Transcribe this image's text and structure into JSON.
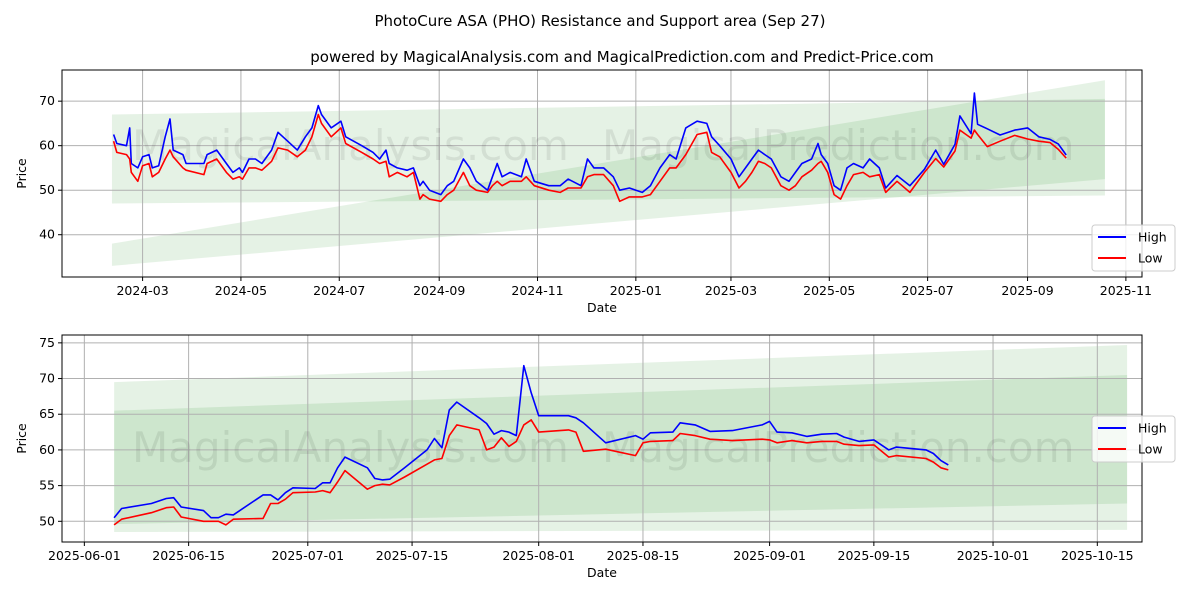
{
  "title": "PhotoCure ASA (PHO) Resistance and Support area (Sep 27)",
  "subtitle": "powered by MagicalAnalysis.com and MagicalPrediction.com and Predict-Price.com",
  "watermarks": [
    "MagicalAnalysis.com",
    "MagicalPrediction.com"
  ],
  "colors": {
    "high": "#0000ff",
    "low": "#ff0000",
    "band": "#008000"
  },
  "chart_data": [
    {
      "type": "line",
      "xlabel": "Date",
      "ylabel": "Price",
      "xlim": [
        "2024-01-11",
        "2025-11-11"
      ],
      "ylim": [
        30.5,
        77
      ],
      "xticks": [
        "2024-03",
        "2024-05",
        "2024-07",
        "2024-09",
        "2024-11",
        "2025-01",
        "2025-03",
        "2025-05",
        "2025-07",
        "2025-09",
        "2025-11"
      ],
      "xtick_dates": [
        "2024-03-01",
        "2024-05-01",
        "2024-07-01",
        "2024-09-01",
        "2024-11-01",
        "2025-01-01",
        "2025-03-01",
        "2025-05-01",
        "2025-07-01",
        "2025-09-01",
        "2025-11-01"
      ],
      "yticks": [
        40,
        50,
        60,
        70
      ],
      "legend": {
        "position": "bottom-right",
        "entries": [
          "High",
          "Low"
        ]
      },
      "bands": [
        {
          "start": "2024-02-11",
          "end": "2025-10-19",
          "top": [
            67,
            70.5
          ],
          "bottom": [
            47,
            48.8
          ]
        },
        {
          "start": "2024-02-11",
          "end": "2025-10-19",
          "top": [
            38,
            74.7
          ],
          "bottom": [
            33,
            52.5
          ]
        }
      ],
      "dates": [
        "2024-02-12",
        "2024-02-14",
        "2024-02-20",
        "2024-02-22",
        "2024-02-23",
        "2024-02-27",
        "2024-03-01",
        "2024-03-05",
        "2024-03-07",
        "2024-03-11",
        "2024-03-15",
        "2024-03-18",
        "2024-03-20",
        "2024-03-26",
        "2024-03-28",
        "2024-04-08",
        "2024-04-10",
        "2024-04-16",
        "2024-04-22",
        "2024-04-26",
        "2024-04-30",
        "2024-05-02",
        "2024-05-06",
        "2024-05-10",
        "2024-05-14",
        "2024-05-20",
        "2024-05-24",
        "2024-05-30",
        "2024-06-05",
        "2024-06-10",
        "2024-06-14",
        "2024-06-18",
        "2024-06-20",
        "2024-06-26",
        "2024-07-02",
        "2024-07-05",
        "2024-07-15",
        "2024-07-22",
        "2024-07-26",
        "2024-07-30",
        "2024-08-01",
        "2024-08-06",
        "2024-08-12",
        "2024-08-16",
        "2024-08-20",
        "2024-08-22",
        "2024-08-26",
        "2024-09-02",
        "2024-09-06",
        "2024-09-10",
        "2024-09-16",
        "2024-09-20",
        "2024-09-24",
        "2024-10-01",
        "2024-10-04",
        "2024-10-07",
        "2024-10-10",
        "2024-10-15",
        "2024-10-22",
        "2024-10-25",
        "2024-10-30",
        "2024-11-08",
        "2024-11-15",
        "2024-11-20",
        "2024-11-28",
        "2024-12-02",
        "2024-12-06",
        "2024-12-12",
        "2024-12-18",
        "2024-12-22",
        "2024-12-28",
        "2025-01-05",
        "2025-01-10",
        "2025-01-16",
        "2025-01-22",
        "2025-01-26",
        "2025-02-01",
        "2025-02-08",
        "2025-02-14",
        "2025-02-17",
        "2025-02-22",
        "2025-03-01",
        "2025-03-06",
        "2025-03-10",
        "2025-03-14",
        "2025-03-18",
        "2025-03-22",
        "2025-03-26",
        "2025-04-01",
        "2025-04-06",
        "2025-04-10",
        "2025-04-14",
        "2025-04-20",
        "2025-04-24",
        "2025-04-26",
        "2025-04-30",
        "2025-05-04",
        "2025-05-08",
        "2025-05-12",
        "2025-05-16",
        "2025-05-22",
        "2025-05-26",
        "2025-06-01",
        "2025-06-05",
        "2025-06-12",
        "2025-06-20",
        "2025-06-29",
        "2025-07-06",
        "2025-07-11",
        "2025-07-18",
        "2025-07-21",
        "2025-07-28",
        "2025-07-30",
        "2025-08-01",
        "2025-08-07",
        "2025-08-15",
        "2025-08-24",
        "2025-09-01",
        "2025-09-08",
        "2025-09-15",
        "2025-09-20",
        "2025-09-25"
      ],
      "high": [
        62.5,
        60.5,
        60,
        64,
        56,
        55,
        57.5,
        58,
        55,
        55.5,
        62,
        66,
        59,
        58,
        56,
        56,
        58,
        59,
        56,
        54,
        55,
        54,
        57,
        57,
        56,
        59,
        63,
        61,
        59,
        62,
        64,
        69,
        67,
        64,
        65.5,
        62,
        60,
        58.5,
        57,
        59,
        56,
        55,
        54.5,
        55,
        51,
        52,
        50,
        49,
        51,
        52,
        57,
        55,
        52,
        50,
        53,
        56,
        53,
        54,
        53,
        57,
        52,
        51,
        51,
        52.5,
        51,
        57,
        55,
        55,
        53,
        50,
        50.5,
        49.5,
        51,
        55,
        58,
        57,
        64,
        65.5,
        65,
        62,
        60,
        57,
        53,
        55,
        57,
        59,
        58,
        57,
        53,
        52,
        54,
        56,
        57,
        60.5,
        58,
        56,
        51,
        50,
        55,
        56,
        55,
        57,
        55,
        50.5,
        53.3,
        51,
        54.7,
        59,
        55.8,
        60.3,
        66.7,
        62.7,
        71.8,
        64.8,
        63.8,
        62.4,
        63.5,
        64,
        62,
        61.4,
        60.4,
        57.9
      ],
      "low": [
        61,
        58.5,
        58,
        57,
        54,
        52,
        55.5,
        56,
        53,
        54,
        57,
        59,
        57.5,
        55,
        54.5,
        53.5,
        56,
        57,
        54,
        52.5,
        53,
        52.5,
        55,
        55,
        54.5,
        56.5,
        59.5,
        59,
        57.5,
        59,
        62,
        67,
        65,
        62,
        64,
        60.5,
        58.5,
        57,
        56,
        56.5,
        53,
        54,
        53,
        54,
        48,
        49,
        48,
        47.5,
        49,
        50,
        54,
        51,
        50,
        49.5,
        51,
        52,
        51,
        52,
        52,
        53,
        51,
        50,
        49.5,
        50.5,
        50.5,
        53,
        53.5,
        53.5,
        51,
        47.5,
        48.5,
        48.5,
        49,
        52,
        55,
        55,
        58,
        62.5,
        63,
        58.5,
        57.5,
        54,
        50.5,
        52,
        54,
        56.5,
        56,
        55,
        51,
        50,
        51,
        53,
        54.5,
        56,
        56.5,
        54,
        49,
        48,
        51,
        53.5,
        54,
        53,
        53.5,
        49.5,
        52,
        49.5,
        54,
        57.1,
        55.2,
        58.8,
        63.5,
        61.7,
        63.5,
        62.5,
        59.8,
        61,
        62.3,
        61.5,
        61,
        60.7,
        59.2,
        57.2
      ]
    },
    {
      "type": "line",
      "xlabel": "Date",
      "ylabel": "Price",
      "xlim": [
        "2025-05-29",
        "2025-10-21"
      ],
      "ylim": [
        47.1,
        76.1
      ],
      "xticks": [
        "2025-06-01",
        "2025-06-15",
        "2025-07-01",
        "2025-07-15",
        "2025-08-01",
        "2025-08-15",
        "2025-09-01",
        "2025-09-15",
        "2025-10-01",
        "2025-10-15"
      ],
      "xtick_dates": [
        "2025-06-01",
        "2025-06-15",
        "2025-07-01",
        "2025-07-15",
        "2025-08-01",
        "2025-08-15",
        "2025-09-01",
        "2025-09-15",
        "2025-10-01",
        "2025-10-15"
      ],
      "yticks": [
        50,
        55,
        60,
        65,
        70,
        75
      ],
      "legend": {
        "position": "center-right",
        "entries": [
          "High",
          "Low"
        ]
      },
      "bands": [
        {
          "start": "2025-06-05",
          "end": "2025-10-19",
          "top": [
            65.5,
            70.5
          ],
          "bottom": [
            48.5,
            48.8
          ]
        },
        {
          "start": "2025-06-05",
          "end": "2025-10-19",
          "top": [
            69.5,
            74.7
          ],
          "bottom": [
            49.6,
            52.5
          ]
        }
      ],
      "dates": [
        "2025-06-05",
        "2025-06-06",
        "2025-06-10",
        "2025-06-12",
        "2025-06-13",
        "2025-06-14",
        "2025-06-17",
        "2025-06-18",
        "2025-06-19",
        "2025-06-20",
        "2025-06-21",
        "2025-06-25",
        "2025-06-26",
        "2025-06-27",
        "2025-06-28",
        "2025-06-29",
        "2025-07-02",
        "2025-07-03",
        "2025-07-04",
        "2025-07-05",
        "2025-07-06",
        "2025-07-09",
        "2025-07-10",
        "2025-07-11",
        "2025-07-12",
        "2025-07-14",
        "2025-07-17",
        "2025-07-18",
        "2025-07-19",
        "2025-07-20",
        "2025-07-21",
        "2025-07-24",
        "2025-07-25",
        "2025-07-26",
        "2025-07-27",
        "2025-07-28",
        "2025-07-29",
        "2025-07-30",
        "2025-07-31",
        "2025-08-01",
        "2025-08-05",
        "2025-08-06",
        "2025-08-07",
        "2025-08-10",
        "2025-08-14",
        "2025-08-15",
        "2025-08-16",
        "2025-08-19",
        "2025-08-20",
        "2025-08-22",
        "2025-08-24",
        "2025-08-27",
        "2025-08-31",
        "2025-09-01",
        "2025-09-02",
        "2025-09-04",
        "2025-09-06",
        "2025-09-08",
        "2025-09-10",
        "2025-09-11",
        "2025-09-13",
        "2025-09-15",
        "2025-09-17",
        "2025-09-18",
        "2025-09-22",
        "2025-09-23",
        "2025-09-24",
        "2025-09-25"
      ],
      "high": [
        50.5,
        51.8,
        52.5,
        53.2,
        53.3,
        52,
        51.5,
        50.5,
        50.5,
        51,
        50.9,
        53.7,
        53.7,
        53,
        54,
        54.7,
        54.6,
        55.4,
        55.4,
        57.5,
        59,
        57.5,
        56,
        55.8,
        55.9,
        57.5,
        60,
        61.6,
        60.3,
        65.6,
        66.7,
        64.5,
        63.7,
        62.2,
        62.7,
        62.5,
        62,
        71.8,
        68,
        64.8,
        64.8,
        64.5,
        63.8,
        61,
        62,
        61.5,
        62.4,
        62.5,
        63.8,
        63.5,
        62.6,
        62.7,
        63.5,
        64,
        62.5,
        62.4,
        61.9,
        62.2,
        62.3,
        61.8,
        61.2,
        61.4,
        60,
        60.4,
        60,
        59.5,
        58.5,
        57.9
      ],
      "low": [
        49.5,
        50.3,
        51.2,
        51.9,
        52,
        50.6,
        50,
        50,
        50,
        49.5,
        50.3,
        50.4,
        52.5,
        52.5,
        53.1,
        54,
        54.1,
        54.3,
        54,
        55.5,
        57.1,
        54.5,
        55,
        55.2,
        55.1,
        56.2,
        58,
        58.6,
        58.8,
        62,
        63.5,
        62.8,
        60,
        60.4,
        61.7,
        60.5,
        61.2,
        63.5,
        64.2,
        62.5,
        62.8,
        62.5,
        59.8,
        60.1,
        59.2,
        61,
        61.2,
        61.3,
        62.3,
        62,
        61.5,
        61.3,
        61.5,
        61.4,
        61,
        61.3,
        61,
        61.2,
        61.2,
        60.8,
        60.6,
        60.7,
        59,
        59.2,
        58.8,
        58.3,
        57.5,
        57.2
      ]
    }
  ]
}
